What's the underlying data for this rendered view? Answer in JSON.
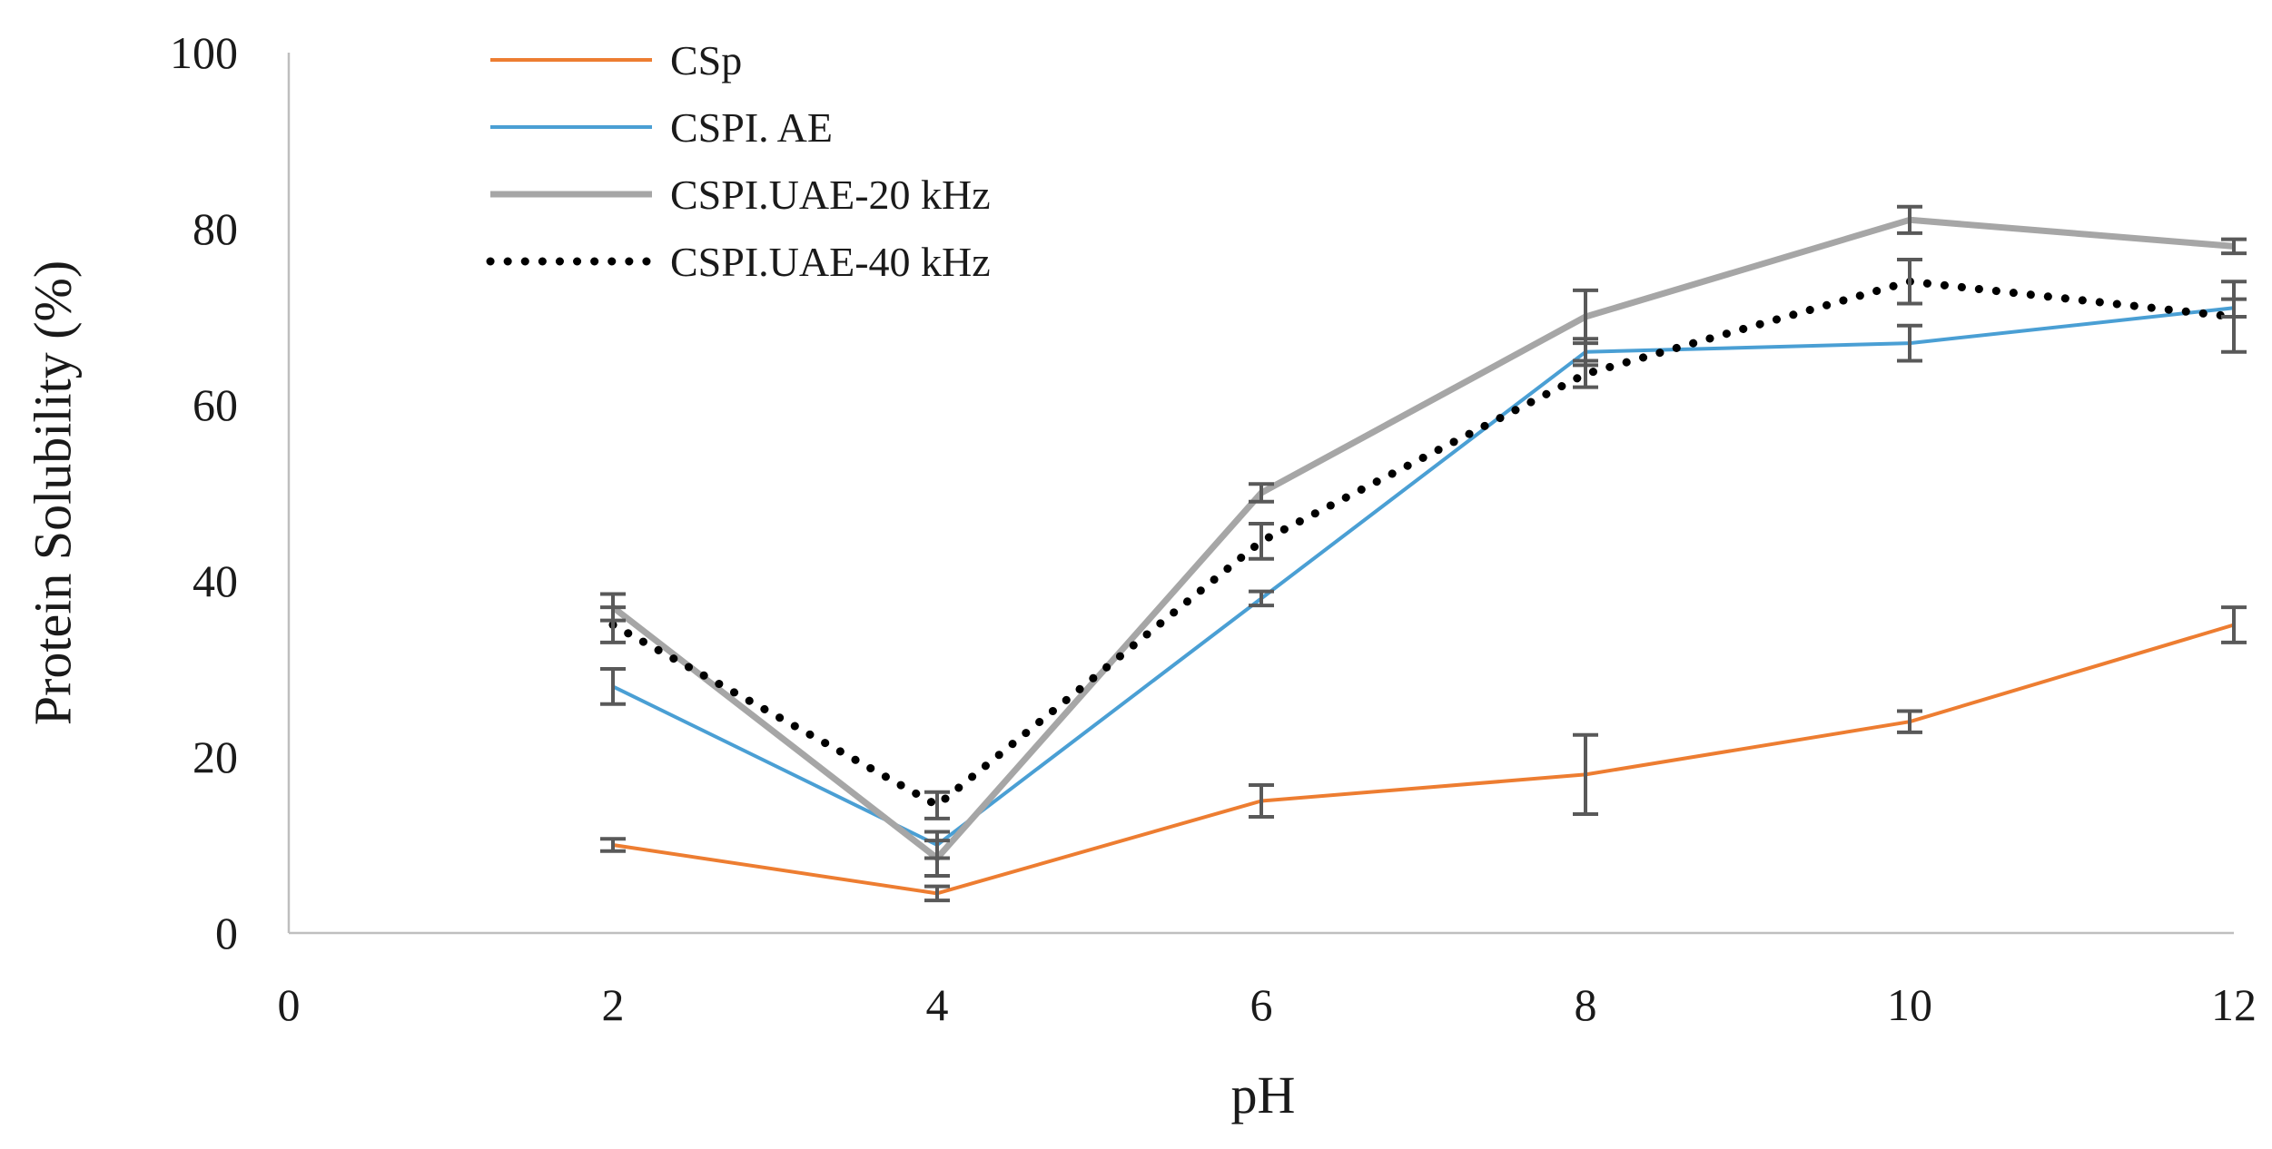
{
  "chart_data": {
    "type": "line",
    "title": "",
    "xlabel": "pH",
    "ylabel": "Protein Solubility (%)",
    "xlim": [
      0,
      12
    ],
    "ylim": [
      0,
      100
    ],
    "x_ticks": [
      0,
      2,
      4,
      6,
      8,
      10,
      12
    ],
    "y_ticks": [
      0,
      20,
      40,
      60,
      80,
      100
    ],
    "grid": false,
    "legend_position": "top-left",
    "series": [
      {
        "name": "CSp",
        "color": "#ED7D31",
        "line_style": "solid",
        "x": [
          2,
          4,
          6,
          8,
          10,
          12
        ],
        "values": [
          10,
          4.5,
          15,
          18,
          24,
          35
        ],
        "errors": [
          0.7,
          0.8,
          1.8,
          4.5,
          1.2,
          2.0
        ]
      },
      {
        "name": "CSPI. AE",
        "color": "#4A9FD4",
        "line_style": "solid",
        "x": [
          2,
          4,
          6,
          8,
          10,
          12
        ],
        "values": [
          28,
          10,
          38,
          66,
          67,
          71
        ],
        "errors": [
          2.0,
          1.5,
          0.8,
          1.5,
          2.0,
          1.0
        ]
      },
      {
        "name": "CSPI.UAE-20 kHz",
        "color": "#A6A6A6",
        "line_style": "solid",
        "x": [
          2,
          4,
          6,
          8,
          10,
          12
        ],
        "values": [
          37,
          8.5,
          50,
          70,
          81,
          78
        ],
        "errors": [
          1.5,
          2.0,
          1.0,
          3.0,
          1.5,
          0.8
        ]
      },
      {
        "name": "CSPI.UAE-40 kHz",
        "color": "#000000",
        "line_style": "dotted",
        "x": [
          2,
          4,
          6,
          8,
          10,
          12
        ],
        "values": [
          35,
          14.5,
          44.5,
          63.5,
          74,
          70
        ],
        "errors": [
          2.0,
          1.5,
          2.0,
          1.5,
          2.5,
          4.0
        ]
      }
    ]
  }
}
